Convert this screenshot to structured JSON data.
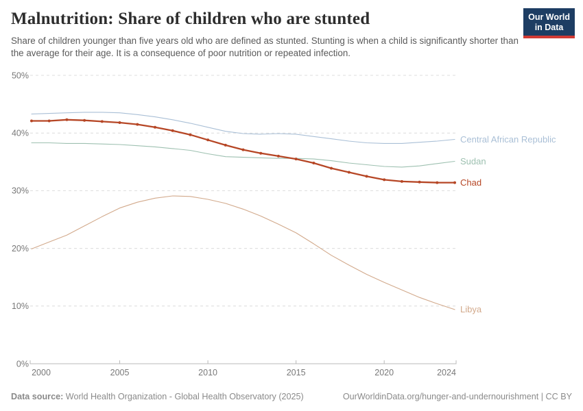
{
  "header": {
    "title": "Malnutrition: Share of children who are stunted",
    "subtitle": "Share of children younger than five years old who are defined as stunted. Stunting is when a child is significantly shorter than the average for their age. It is a consequence of poor nutrition or repeated infection.",
    "logo": {
      "line1": "Our World",
      "line2": "in Data"
    }
  },
  "footer": {
    "source_label": "Data source:",
    "source_text": " World Health Organization - Global Health Observatory (2025)",
    "link_text": "OurWorldinData.org/hunger-and-undernourishment | CC BY"
  },
  "colors": {
    "logo_navy": "#1d3d63",
    "logo_red": "#d13a34",
    "grid": "#dcdcdc",
    "axis": "#b8b8b8",
    "tick_text": "#787878"
  },
  "chart_data": {
    "type": "line",
    "title": "Malnutrition: Share of children who are stunted",
    "xlabel": "",
    "ylabel": "",
    "ylim": [
      0,
      50
    ],
    "xlim": [
      2000,
      2024
    ],
    "grid": "horizontal-dashed",
    "legend_position": "labels-at-line-ends",
    "yticks": [
      {
        "v": 0,
        "label": "0%"
      },
      {
        "v": 10,
        "label": "10%"
      },
      {
        "v": 20,
        "label": "20%"
      },
      {
        "v": 30,
        "label": "30%"
      },
      {
        "v": 40,
        "label": "40%"
      },
      {
        "v": 50,
        "label": "50%"
      }
    ],
    "xticks": [
      {
        "v": 2000,
        "label": "2000"
      },
      {
        "v": 2005,
        "label": "2005"
      },
      {
        "v": 2010,
        "label": "2010"
      },
      {
        "v": 2015,
        "label": "2015"
      },
      {
        "v": 2020,
        "label": "2020"
      },
      {
        "v": 2024,
        "label": "2024"
      }
    ],
    "x": [
      2000,
      2001,
      2002,
      2003,
      2004,
      2005,
      2006,
      2007,
      2008,
      2009,
      2010,
      2011,
      2012,
      2013,
      2014,
      2015,
      2016,
      2017,
      2018,
      2019,
      2020,
      2021,
      2022,
      2023,
      2024
    ],
    "series": [
      {
        "name": "Central African Republic",
        "color": "#a9bfd6",
        "markers": false,
        "values": [
          43.3,
          43.4,
          43.5,
          43.6,
          43.6,
          43.5,
          43.2,
          42.8,
          42.3,
          41.7,
          41.0,
          40.3,
          39.9,
          39.8,
          39.9,
          39.8,
          39.4,
          39.0,
          38.6,
          38.3,
          38.2,
          38.2,
          38.4,
          38.6,
          38.9
        ]
      },
      {
        "name": "Sudan",
        "color": "#9dc0b0",
        "markers": false,
        "values": [
          38.3,
          38.3,
          38.2,
          38.2,
          38.1,
          38.0,
          37.8,
          37.6,
          37.3,
          37.0,
          36.4,
          35.9,
          35.8,
          35.7,
          35.6,
          35.6,
          35.5,
          35.2,
          34.8,
          34.5,
          34.2,
          34.1,
          34.3,
          34.7,
          35.1
        ]
      },
      {
        "name": "Chad",
        "color": "#b64625",
        "markers": true,
        "values": [
          42.1,
          42.1,
          42.3,
          42.2,
          42.0,
          41.8,
          41.5,
          41.0,
          40.4,
          39.7,
          38.8,
          37.9,
          37.1,
          36.5,
          36.0,
          35.5,
          34.8,
          33.9,
          33.2,
          32.5,
          31.9,
          31.6,
          31.5,
          31.4,
          31.4
        ]
      },
      {
        "name": "Libya",
        "color": "#d2a98b",
        "markers": false,
        "values": [
          19.9,
          21.1,
          22.3,
          23.9,
          25.5,
          27.0,
          28.0,
          28.7,
          29.1,
          29.0,
          28.5,
          27.8,
          26.8,
          25.6,
          24.2,
          22.7,
          20.8,
          18.8,
          17.1,
          15.5,
          14.1,
          12.8,
          11.5,
          10.4,
          9.4
        ]
      }
    ]
  }
}
